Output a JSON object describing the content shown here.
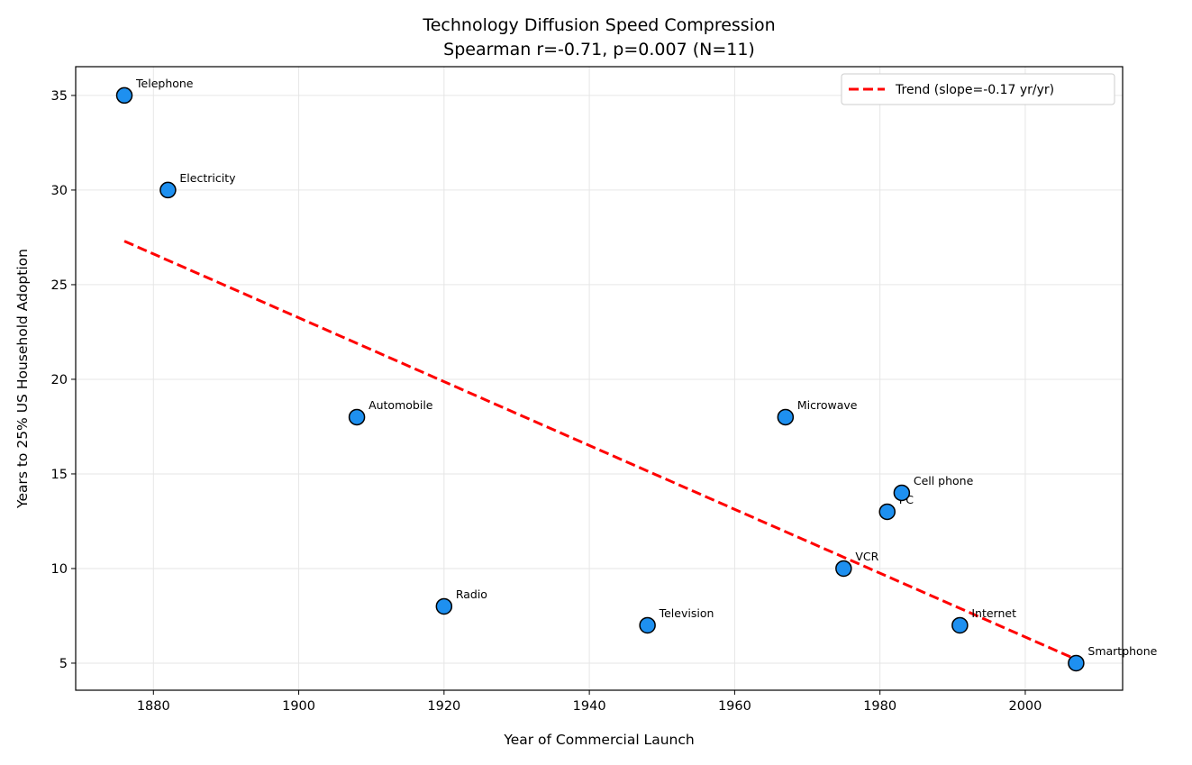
{
  "chart_data": {
    "type": "scatter",
    "title": "Technology Diffusion Speed Compression",
    "subtitle": "Spearman r=-0.71, p=0.007 (N=11)",
    "xlabel": "Year of Commercial Launch",
    "ylabel": "Years to 25% US Household Adoption",
    "xlim": [
      1869.3,
      2013.4
    ],
    "ylim": [
      3.57,
      36.52
    ],
    "xticks": [
      1880,
      1900,
      1920,
      1940,
      1960,
      1980,
      2000
    ],
    "yticks": [
      5,
      10,
      15,
      20,
      25,
      30,
      35
    ],
    "grid": true,
    "legend_placement": "top-right",
    "points": [
      {
        "label": "Telephone",
        "x": 1876,
        "y": 35
      },
      {
        "label": "Electricity",
        "x": 1882,
        "y": 30
      },
      {
        "label": "Automobile",
        "x": 1908,
        "y": 18
      },
      {
        "label": "Radio",
        "x": 1920,
        "y": 8
      },
      {
        "label": "Television",
        "x": 1948,
        "y": 7
      },
      {
        "label": "Microwave",
        "x": 1967,
        "y": 18
      },
      {
        "label": "VCR",
        "x": 1975,
        "y": 10
      },
      {
        "label": "PC",
        "x": 1981,
        "y": 13
      },
      {
        "label": "Cell phone",
        "x": 1983,
        "y": 14
      },
      {
        "label": "Internet",
        "x": 1991,
        "y": 7
      },
      {
        "label": "Smartphone",
        "x": 2007,
        "y": 5
      }
    ],
    "trend": {
      "name": "Trend (slope=-0.17 yr/yr)",
      "x": [
        1876,
        2007
      ],
      "y": [
        27.3,
        5.2
      ]
    },
    "colors": {
      "marker": "#1e90f0",
      "marker_edge": "#000000",
      "trend": "#ff0000"
    }
  }
}
